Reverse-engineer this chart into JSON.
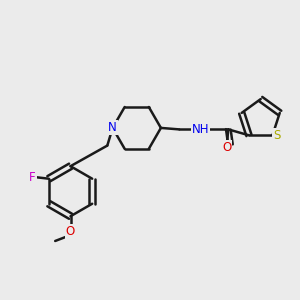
{
  "background_color": "#ebebeb",
  "bond_color": "#1a1a1a",
  "bond_width": 1.8,
  "atom_colors": {
    "N": "#0000ee",
    "O": "#dd0000",
    "F": "#cc00cc",
    "S": "#aaaa00",
    "H": "#4a8a9a",
    "C": "#1a1a1a"
  },
  "font_size": 8.5,
  "fig_size": [
    3.0,
    3.0
  ],
  "dpi": 100
}
